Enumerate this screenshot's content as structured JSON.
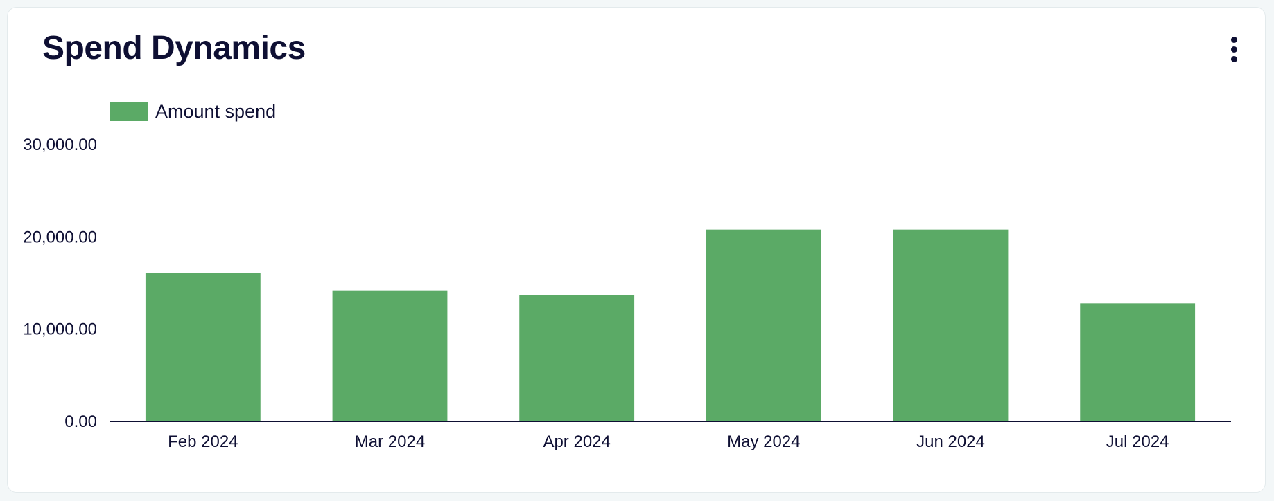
{
  "card": {
    "title": "Spend Dynamics",
    "menu_icon": "more-vertical-icon"
  },
  "colors": {
    "bar": "#5baa66",
    "text": "#0e0f33",
    "axis": "#0e0f33"
  },
  "chart_data": {
    "type": "bar",
    "title": "Spend Dynamics",
    "xlabel": "",
    "ylabel": "",
    "categories": [
      "Feb 2024",
      "Mar 2024",
      "Apr 2024",
      "May 2024",
      "Jun 2024",
      "Jul 2024"
    ],
    "series": [
      {
        "name": "Amount spend",
        "values": [
          16100,
          14200,
          13700,
          20800,
          20800,
          12800
        ]
      }
    ],
    "ylim": [
      0,
      30000
    ],
    "yticks": [
      0,
      10000,
      20000,
      30000
    ],
    "ytick_labels": [
      "0.00",
      "10,000.00",
      "20,000.00",
      "30,000.00"
    ],
    "grid": false,
    "legend": "top-left"
  }
}
